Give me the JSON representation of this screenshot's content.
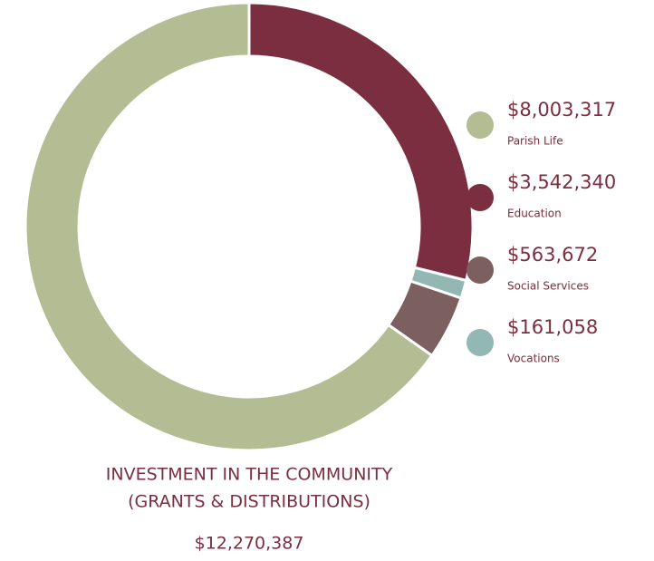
{
  "chart_data": {
    "type": "donut",
    "title": [
      "INVESTMENT IN THE COMMUNITY",
      "(GRANTS & DISTRIBUTIONS)"
    ],
    "total": "$12,270,387",
    "categories": [
      "Parish Life",
      "Education",
      "Social Services",
      "Vocations"
    ],
    "values": [
      8003317,
      3542340,
      563672,
      161058
    ],
    "value_labels": [
      "$8,003,317",
      "$3,542,340",
      "$563,672",
      "$161,058"
    ],
    "colors": [
      "#b3bc92",
      "#7a2e3f",
      "#7c5f5f",
      "#93b8b4"
    ],
    "legend": "right"
  }
}
